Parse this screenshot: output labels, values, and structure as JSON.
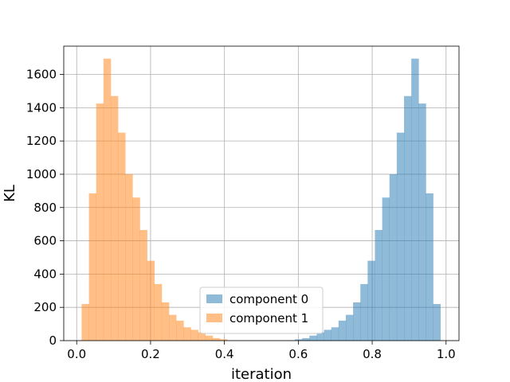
{
  "chart_data": {
    "type": "histogram",
    "title": "",
    "xlabel": "iteration",
    "ylabel": "KL",
    "xlim": [
      -0.035,
      1.035
    ],
    "ylim": [
      0,
      1770
    ],
    "xticks": [
      0.0,
      0.2,
      0.4,
      0.6,
      0.8,
      1.0
    ],
    "xtick_labels": [
      "0.0",
      "0.2",
      "0.4",
      "0.6",
      "0.8",
      "1.0"
    ],
    "yticks": [
      0,
      200,
      400,
      600,
      800,
      1000,
      1200,
      1400,
      1600
    ],
    "ytick_labels": [
      "0",
      "200",
      "400",
      "600",
      "800",
      "1000",
      "1200",
      "1400",
      "1600"
    ],
    "grid": true,
    "legend_position": "lower-center",
    "bin_width": 0.0197,
    "series": [
      {
        "name": "component 0",
        "color": "#1f77b4",
        "alpha": 0.5,
        "bin_start": 0.571,
        "values": [
          2,
          8,
          15,
          30,
          50,
          65,
          80,
          120,
          155,
          230,
          340,
          480,
          665,
          860,
          1000,
          1250,
          1470,
          1695,
          1425,
          885,
          220
        ]
      },
      {
        "name": "component 1",
        "color": "#ff7f0e",
        "alpha": 0.5,
        "bin_start": 0.0134,
        "values": [
          220,
          885,
          1425,
          1695,
          1470,
          1250,
          1000,
          860,
          665,
          480,
          340,
          230,
          155,
          120,
          80,
          65,
          50,
          30,
          15,
          8,
          2
        ]
      }
    ]
  }
}
